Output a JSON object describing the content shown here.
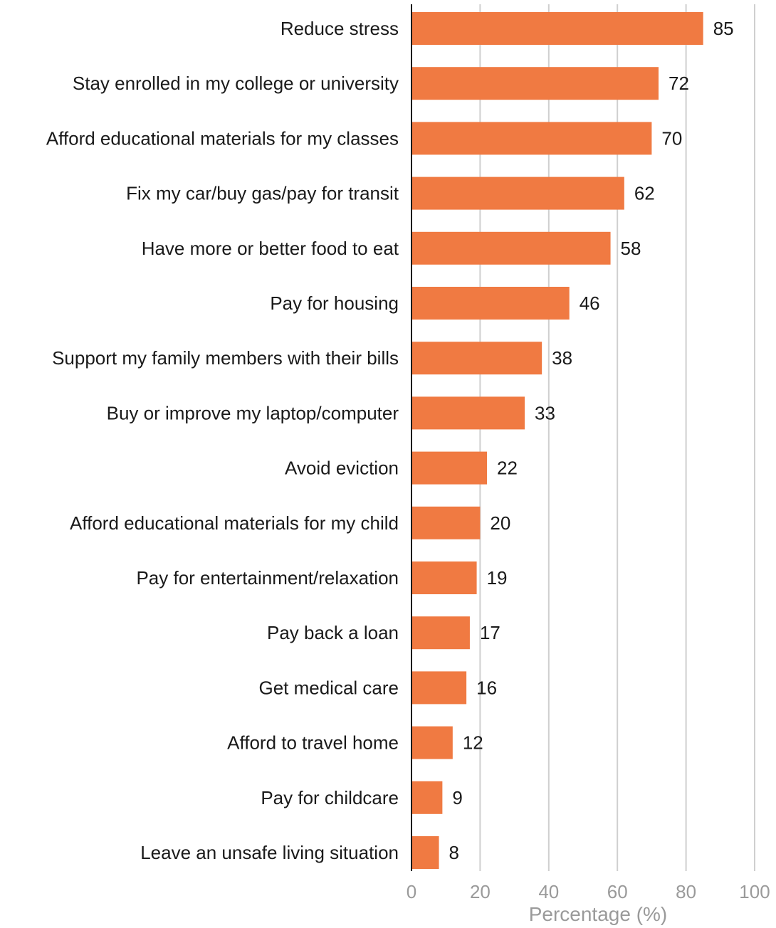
{
  "chart_data": {
    "type": "bar",
    "orientation": "horizontal",
    "categories": [
      "Reduce stress",
      "Stay enrolled in my college or university",
      "Afford educational materials for my classes",
      "Fix my car/buy gas/pay for transit",
      "Have more or better food to eat",
      "Pay for housing",
      "Support my family members with their bills",
      "Buy or improve my laptop/computer",
      "Avoid eviction",
      "Afford educational materials for my child",
      "Pay for entertainment/relaxation",
      "Pay back a loan",
      "Get medical care",
      "Afford to travel home",
      "Pay for childcare",
      "Leave an unsafe living situation"
    ],
    "values": [
      85,
      72,
      70,
      62,
      58,
      46,
      38,
      33,
      22,
      20,
      19,
      17,
      16,
      12,
      9,
      8
    ],
    "xlabel": "Percentage (%)",
    "ylabel": "",
    "xlim": [
      0,
      100
    ],
    "xticks": [
      "0",
      "20",
      "40",
      "60",
      "80",
      "100"
    ],
    "grid": "vertical",
    "legend": "none",
    "bar_color": "#f07a42"
  }
}
